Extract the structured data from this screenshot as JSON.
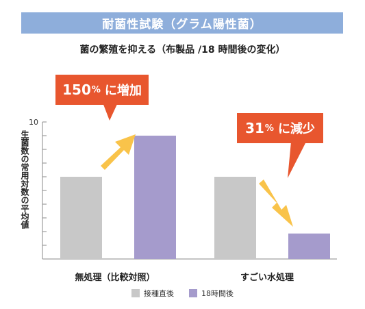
{
  "banner": "耐菌性試験（グラム陽性菌）",
  "subtitle": "菌の繁殖を抑える（布製品 /18 時間後の変化）",
  "callouts": [
    {
      "value": "150",
      "unit": "%",
      "text": "に増加"
    },
    {
      "value": "31",
      "unit": "%",
      "text": "に減少"
    }
  ],
  "chart_data": {
    "type": "bar",
    "categories": [
      "無処理（比較対照）",
      "すごい水処理"
    ],
    "series": [
      {
        "name": "接種直後",
        "color": "#c8c8c8",
        "values": [
          6,
          6
        ]
      },
      {
        "name": "18時間後",
        "color": "#a59bcc",
        "values": [
          9,
          1.86
        ]
      }
    ],
    "ylabel": "生菌数の常用対数の平均値",
    "ylim": [
      0,
      10
    ],
    "yticks": [
      10
    ],
    "grid": false,
    "legend_position": "bottom"
  },
  "colors": {
    "banner": "#8eaedb",
    "callout": "#e8562e",
    "arrow": "#f9c34a",
    "axis": "#888888"
  }
}
